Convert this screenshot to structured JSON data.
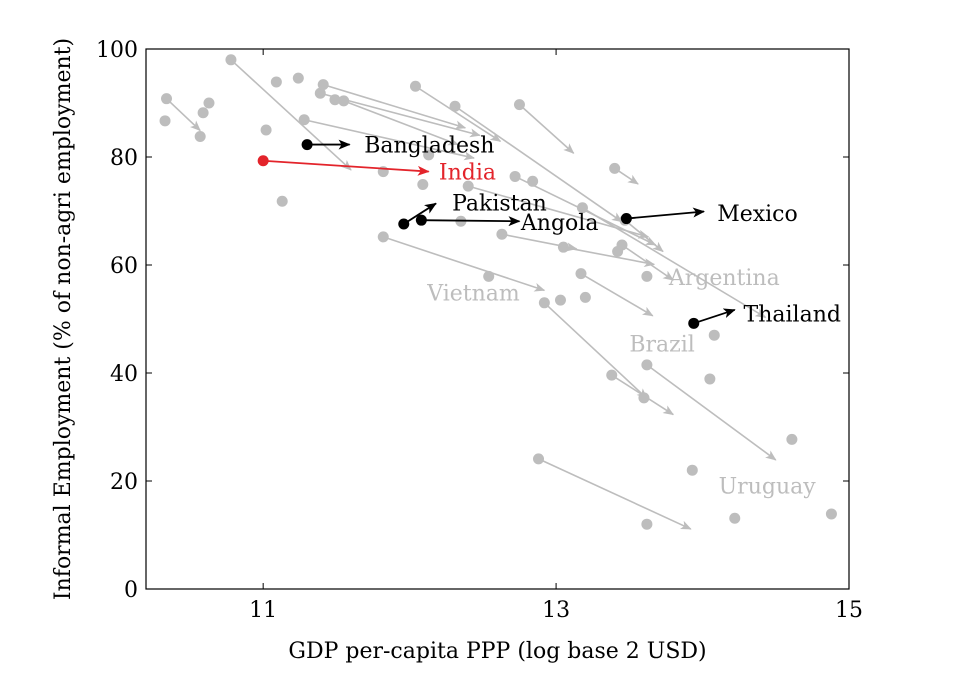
{
  "chart_data": {
    "type": "scatter",
    "title": "",
    "xlabel": "GDP per-capita PPP (log base 2 USD)",
    "ylabel": "Informal Employment (% of non-agri employment)",
    "xlim": [
      10.2,
      15.0
    ],
    "ylim": [
      0,
      100
    ],
    "xticks": [
      11,
      13,
      15
    ],
    "yticks": [
      0,
      20,
      40,
      60,
      80,
      100
    ],
    "grid": false,
    "colors": {
      "grey": "#bdbdbd",
      "highlight": "#000000",
      "india": "#e3242b"
    },
    "points": [
      {
        "x": 10.33,
        "y": 86.7
      },
      {
        "x": 10.57,
        "y": 83.8
      },
      {
        "x": 10.59,
        "y": 88.2
      },
      {
        "x": 10.63,
        "y": 90.0
      },
      {
        "x": 11.02,
        "y": 85.0
      },
      {
        "x": 11.09,
        "y": 93.9
      },
      {
        "x": 11.24,
        "y": 94.6
      },
      {
        "x": 11.13,
        "y": 71.8
      },
      {
        "x": 11.49,
        "y": 90.6
      },
      {
        "x": 11.82,
        "y": 77.3
      },
      {
        "x": 12.09,
        "y": 74.9
      },
      {
        "x": 12.13,
        "y": 80.4
      },
      {
        "x": 12.35,
        "y": 68.1
      },
      {
        "x": 12.54,
        "y": 57.9
      },
      {
        "x": 12.84,
        "y": 75.5
      },
      {
        "x": 13.03,
        "y": 53.5
      },
      {
        "x": 13.2,
        "y": 54.0
      },
      {
        "x": 13.42,
        "y": 62.5
      },
      {
        "x": 14.05,
        "y": 38.9
      },
      {
        "x": 14.08,
        "y": 47.0
      },
      {
        "x": 13.93,
        "y": 22.0
      },
      {
        "x": 14.22,
        "y": 13.1
      },
      {
        "x": 14.61,
        "y": 27.7
      },
      {
        "x": 14.88,
        "y": 13.9
      },
      {
        "x": 13.62,
        "y": 12.0
      },
      {
        "x": 13.62,
        "y": 57.9
      },
      {
        "x": 13.6,
        "y": 35.4
      }
    ],
    "transitions": [
      {
        "x0": 10.34,
        "y0": 90.8,
        "x1": 10.57,
        "y1": 84.9,
        "group": "grey"
      },
      {
        "x0": 10.78,
        "y0": 98.0,
        "x1": 11.6,
        "y1": 77.6,
        "group": "grey"
      },
      {
        "x0": 11.39,
        "y0": 91.8,
        "x1": 12.48,
        "y1": 84.0,
        "group": "grey"
      },
      {
        "x0": 11.41,
        "y0": 93.4,
        "x1": 12.38,
        "y1": 85.4,
        "group": "grey"
      },
      {
        "x0": 11.55,
        "y0": 90.4,
        "x1": 12.33,
        "y1": 82.3,
        "group": "grey"
      },
      {
        "x0": 11.28,
        "y0": 86.9,
        "x1": 12.44,
        "y1": 79.8,
        "group": "grey"
      },
      {
        "x0": 12.04,
        "y0": 93.1,
        "x1": 12.62,
        "y1": 82.9,
        "group": "grey"
      },
      {
        "x0": 12.31,
        "y0": 89.4,
        "x1": 13.45,
        "y1": 68.0,
        "group": "grey"
      },
      {
        "x0": 12.75,
        "y0": 89.7,
        "x1": 13.12,
        "y1": 80.7,
        "group": "grey"
      },
      {
        "x0": 12.72,
        "y0": 76.4,
        "x1": 13.68,
        "y1": 63.7,
        "group": "grey"
      },
      {
        "x0": 12.4,
        "y0": 74.6,
        "x1": 13.63,
        "y1": 65.2,
        "group": "grey"
      },
      {
        "x0": 13.18,
        "y0": 70.6,
        "x1": 14.43,
        "y1": 50.3,
        "group": "grey"
      },
      {
        "x0": 13.05,
        "y0": 63.3,
        "x1": 13.67,
        "y1": 60.1,
        "group": "grey"
      },
      {
        "x0": 12.63,
        "y0": 65.7,
        "x1": 13.14,
        "y1": 63.0,
        "group": "grey"
      },
      {
        "x0": 13.4,
        "y0": 77.9,
        "x1": 13.56,
        "y1": 75.0,
        "group": "grey"
      },
      {
        "x0": 13.47,
        "y0": 68.3,
        "x1": 13.73,
        "y1": 62.5,
        "group": "grey"
      },
      {
        "x0": 13.45,
        "y0": 63.7,
        "x1": 13.8,
        "y1": 57.2,
        "group": "grey"
      },
      {
        "x0": 13.17,
        "y0": 58.4,
        "x1": 13.66,
        "y1": 50.6,
        "group": "grey"
      },
      {
        "x0": 11.82,
        "y0": 65.2,
        "x1": 12.92,
        "y1": 55.3,
        "group": "grey"
      },
      {
        "x0": 12.92,
        "y0": 53.0,
        "x1": 13.62,
        "y1": 35.3,
        "group": "grey"
      },
      {
        "x0": 13.38,
        "y0": 39.6,
        "x1": 13.8,
        "y1": 32.3,
        "group": "grey"
      },
      {
        "x0": 13.62,
        "y0": 41.5,
        "x1": 14.5,
        "y1": 23.9,
        "group": "grey"
      },
      {
        "x0": 12.88,
        "y0": 24.1,
        "x1": 13.92,
        "y1": 11.1,
        "group": "grey"
      },
      {
        "x0": 11.3,
        "y0": 82.3,
        "x1": 11.59,
        "y1": 82.3,
        "group": "highlight"
      },
      {
        "x0": 11.96,
        "y0": 67.6,
        "x1": 12.18,
        "y1": 71.4,
        "group": "highlight"
      },
      {
        "x0": 12.08,
        "y0": 68.3,
        "x1": 12.75,
        "y1": 68.1,
        "group": "highlight"
      },
      {
        "x0": 13.48,
        "y0": 68.6,
        "x1": 14.01,
        "y1": 69.9,
        "group": "highlight"
      },
      {
        "x0": 13.94,
        "y0": 49.2,
        "x1": 14.22,
        "y1": 51.7,
        "group": "highlight"
      },
      {
        "x0": 11.0,
        "y0": 79.3,
        "x1": 12.13,
        "y1": 77.3,
        "group": "india"
      }
    ],
    "labels": [
      {
        "text": "Bangladesh",
        "x": 11.69,
        "y": 82.3,
        "group": "highlight"
      },
      {
        "text": "India",
        "x": 12.2,
        "y": 77.3,
        "group": "india"
      },
      {
        "text": "Pakistan",
        "x": 12.29,
        "y": 71.6,
        "group": "highlight"
      },
      {
        "text": "Angola",
        "x": 12.76,
        "y": 68.0,
        "group": "highlight"
      },
      {
        "text": "Mexico",
        "x": 14.1,
        "y": 69.6,
        "group": "highlight"
      },
      {
        "text": "Thailand",
        "x": 14.28,
        "y": 51.0,
        "group": "highlight"
      },
      {
        "text": "Argentina",
        "x": 13.77,
        "y": 57.8,
        "group": "grey"
      },
      {
        "text": "Vietnam",
        "x": 12.12,
        "y": 54.9,
        "group": "grey"
      },
      {
        "text": "Brazil",
        "x": 13.5,
        "y": 45.5,
        "group": "grey"
      },
      {
        "text": "Uruguay",
        "x": 14.11,
        "y": 19.2,
        "group": "grey"
      }
    ]
  }
}
